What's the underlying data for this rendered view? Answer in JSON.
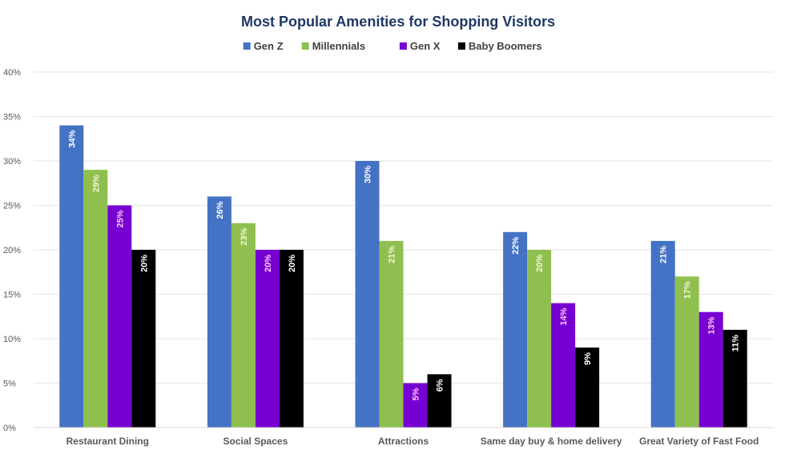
{
  "chart_data": {
    "type": "bar",
    "title": "Most Popular Amenities for Shopping Visitors",
    "xlabel": "",
    "ylabel": "",
    "ylim": [
      0,
      40
    ],
    "yticks": [
      0,
      5,
      10,
      15,
      20,
      25,
      30,
      35,
      40
    ],
    "ytick_labels": [
      "0%",
      "5%",
      "10%",
      "15%",
      "20%",
      "25%",
      "30%",
      "35%",
      "40%"
    ],
    "grid": true,
    "legend_position": "top-center",
    "categories": [
      "Restaurant Dining",
      "Social Spaces",
      "Attractions",
      "Same day buy & home delivery",
      "Great Variety of Fast Food"
    ],
    "series": [
      {
        "name": "Gen Z",
        "color": "#4472C4",
        "label_color": "#FFFFFF",
        "values": [
          34,
          26,
          30,
          22,
          21
        ],
        "labels": [
          "34%",
          "26%",
          "30%",
          "22%",
          "21%"
        ]
      },
      {
        "name": "Millennials",
        "color": "#8FC04F",
        "label_color": "#F4F4D8",
        "values": [
          29,
          23,
          21,
          20,
          17
        ],
        "labels": [
          "29%",
          "23%",
          "21%",
          "20%",
          "17%"
        ]
      },
      {
        "name": "Gen X",
        "color": "#7600D2",
        "label_color": "#FFCCF2",
        "values": [
          25,
          20,
          5,
          14,
          13
        ],
        "labels": [
          "25%",
          "20%",
          "5%",
          "14%",
          "13%"
        ]
      },
      {
        "name": "Baby Boomers",
        "color": "#000000",
        "label_color": "#FFFFFF",
        "values": [
          20,
          20,
          6,
          9,
          11
        ],
        "labels": [
          "20%",
          "20%",
          "6%",
          "9%",
          "11%"
        ]
      }
    ]
  },
  "colors": {
    "title": "#1F3864",
    "legend_text": "#404040",
    "axis_text": "#595959",
    "gridline": "#E6E6E6"
  }
}
